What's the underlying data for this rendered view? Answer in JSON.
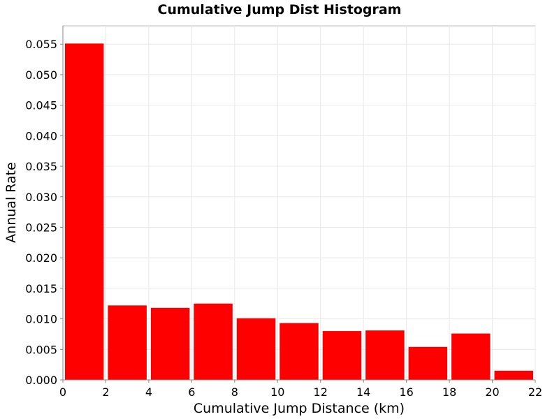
{
  "chart_data": {
    "type": "bar",
    "title": "Cumulative Jump Dist Histogram",
    "xlabel": "Cumulative Jump Distance (km)",
    "ylabel": "Annual Rate",
    "bin_width": 2,
    "bins": [
      {
        "x0": 0,
        "x1": 2,
        "value": 0.0551
      },
      {
        "x0": 2,
        "x1": 4,
        "value": 0.0122
      },
      {
        "x0": 4,
        "x1": 6,
        "value": 0.0118
      },
      {
        "x0": 6,
        "x1": 8,
        "value": 0.0125
      },
      {
        "x0": 8,
        "x1": 10,
        "value": 0.0101
      },
      {
        "x0": 10,
        "x1": 12,
        "value": 0.0093
      },
      {
        "x0": 12,
        "x1": 14,
        "value": 0.008
      },
      {
        "x0": 14,
        "x1": 16,
        "value": 0.0081
      },
      {
        "x0": 16,
        "x1": 18,
        "value": 0.0054
      },
      {
        "x0": 18,
        "x1": 20,
        "value": 0.0076
      },
      {
        "x0": 20,
        "x1": 22,
        "value": 0.0015
      }
    ],
    "xlim": [
      0,
      22
    ],
    "ylim": [
      0,
      0.058
    ],
    "xticks": [
      0,
      2,
      4,
      6,
      8,
      10,
      12,
      14,
      16,
      18,
      20,
      22
    ],
    "yticks": [
      "0.000",
      "0.005",
      "0.010",
      "0.015",
      "0.020",
      "0.025",
      "0.030",
      "0.035",
      "0.040",
      "0.045",
      "0.050",
      "0.055"
    ],
    "bar_color": "#ff0000",
    "grid": true,
    "legend": "none"
  }
}
